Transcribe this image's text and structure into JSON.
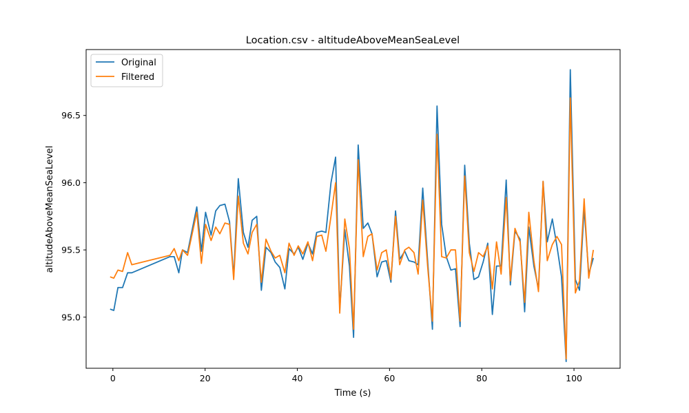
{
  "chart_data": {
    "type": "line",
    "title": "Location.csv - altitudeAboveMeanSeaLevel",
    "xlabel": "Time (s)",
    "ylabel": "altitudeAboveMeanSeaLevel",
    "xlim": [
      -5.8,
      110
    ],
    "ylim": [
      94.62,
      96.99
    ],
    "xticks": [
      0,
      20,
      40,
      60,
      80,
      100
    ],
    "yticks": [
      95.0,
      95.5,
      96.0,
      96.5
    ],
    "ytick_labels": [
      "95.0",
      "95.5",
      "96.0",
      "96.5"
    ],
    "grid": false,
    "legend_position": "upper left",
    "series": [
      {
        "name": "Original",
        "color": "#1f77b4",
        "points": [
          [
            -0.6,
            95.06
          ],
          [
            0.2,
            95.05
          ],
          [
            1.1,
            95.22
          ],
          [
            2.1,
            95.22
          ],
          [
            3.2,
            95.33
          ],
          [
            4.1,
            95.33
          ],
          [
            12.4,
            95.45
          ],
          [
            13.3,
            95.45
          ],
          [
            14.3,
            95.33
          ],
          [
            15.1,
            95.5
          ],
          [
            16.2,
            95.48
          ],
          [
            18.2,
            95.82
          ],
          [
            19.2,
            95.49
          ],
          [
            20.1,
            95.78
          ],
          [
            21.3,
            95.61
          ],
          [
            22.3,
            95.79
          ],
          [
            23.2,
            95.83
          ],
          [
            24.3,
            95.84
          ],
          [
            25.3,
            95.71
          ],
          [
            26.2,
            95.3
          ],
          [
            27.2,
            96.03
          ],
          [
            28.3,
            95.63
          ],
          [
            29.3,
            95.52
          ],
          [
            30.2,
            95.72
          ],
          [
            31.2,
            95.75
          ],
          [
            32.2,
            95.2
          ],
          [
            33.2,
            95.52
          ],
          [
            34.3,
            95.48
          ],
          [
            35.2,
            95.41
          ],
          [
            36.2,
            95.37
          ],
          [
            37.3,
            95.21
          ],
          [
            38.2,
            95.51
          ],
          [
            39.3,
            95.47
          ],
          [
            40.2,
            95.52
          ],
          [
            41.2,
            95.43
          ],
          [
            42.3,
            95.55
          ],
          [
            43.3,
            95.47
          ],
          [
            44.2,
            95.63
          ],
          [
            45.3,
            95.64
          ],
          [
            46.2,
            95.63
          ],
          [
            47.3,
            96.0
          ],
          [
            48.3,
            96.19
          ],
          [
            49.2,
            95.06
          ],
          [
            50.3,
            95.65
          ],
          [
            51.3,
            95.38
          ],
          [
            52.2,
            94.85
          ],
          [
            53.2,
            96.28
          ],
          [
            54.3,
            95.66
          ],
          [
            55.3,
            95.7
          ],
          [
            56.2,
            95.62
          ],
          [
            57.3,
            95.3
          ],
          [
            58.3,
            95.41
          ],
          [
            59.3,
            95.42
          ],
          [
            60.3,
            95.26
          ],
          [
            61.3,
            95.79
          ],
          [
            62.2,
            95.43
          ],
          [
            63.3,
            95.49
          ],
          [
            64.2,
            95.42
          ],
          [
            65.3,
            95.41
          ],
          [
            66.2,
            95.39
          ],
          [
            67.2,
            95.96
          ],
          [
            68.3,
            95.4
          ],
          [
            69.3,
            94.91
          ],
          [
            70.3,
            96.57
          ],
          [
            71.3,
            95.69
          ],
          [
            72.3,
            95.45
          ],
          [
            73.3,
            95.35
          ],
          [
            74.3,
            95.36
          ],
          [
            75.3,
            94.93
          ],
          [
            76.3,
            96.13
          ],
          [
            77.3,
            95.55
          ],
          [
            78.3,
            95.28
          ],
          [
            79.3,
            95.3
          ],
          [
            80.3,
            95.41
          ],
          [
            81.3,
            95.55
          ],
          [
            82.3,
            95.02
          ],
          [
            83.2,
            95.38
          ],
          [
            84.2,
            95.38
          ],
          [
            85.3,
            96.02
          ],
          [
            86.2,
            95.24
          ],
          [
            87.2,
            95.64
          ],
          [
            88.3,
            95.58
          ],
          [
            89.3,
            95.04
          ],
          [
            90.2,
            95.67
          ],
          [
            91.3,
            95.38
          ],
          [
            92.3,
            95.21
          ],
          [
            93.3,
            96.01
          ],
          [
            94.2,
            95.56
          ],
          [
            95.3,
            95.73
          ],
          [
            96.3,
            95.53
          ],
          [
            97.3,
            95.3
          ],
          [
            98.3,
            94.67
          ],
          [
            99.2,
            96.84
          ],
          [
            100.3,
            95.28
          ],
          [
            101.2,
            95.2
          ],
          [
            102.2,
            95.81
          ],
          [
            103.2,
            95.32
          ],
          [
            104.2,
            95.44
          ]
        ]
      },
      {
        "name": "Filtered",
        "color": "#ff7f0e",
        "points": [
          [
            -0.6,
            95.3
          ],
          [
            0.2,
            95.29
          ],
          [
            1.1,
            95.35
          ],
          [
            2.1,
            95.34
          ],
          [
            3.2,
            95.48
          ],
          [
            4.1,
            95.39
          ],
          [
            12.4,
            95.46
          ],
          [
            13.3,
            95.51
          ],
          [
            14.3,
            95.42
          ],
          [
            15.1,
            95.5
          ],
          [
            16.2,
            95.46
          ],
          [
            18.2,
            95.78
          ],
          [
            19.2,
            95.4
          ],
          [
            20.1,
            95.69
          ],
          [
            21.3,
            95.57
          ],
          [
            22.3,
            95.67
          ],
          [
            23.2,
            95.62
          ],
          [
            24.3,
            95.7
          ],
          [
            25.3,
            95.69
          ],
          [
            26.2,
            95.28
          ],
          [
            27.2,
            95.9
          ],
          [
            28.3,
            95.55
          ],
          [
            29.3,
            95.47
          ],
          [
            30.2,
            95.63
          ],
          [
            31.2,
            95.69
          ],
          [
            32.2,
            95.26
          ],
          [
            33.2,
            95.58
          ],
          [
            34.3,
            95.49
          ],
          [
            35.2,
            95.44
          ],
          [
            36.2,
            95.46
          ],
          [
            37.3,
            95.33
          ],
          [
            38.2,
            95.55
          ],
          [
            39.3,
            95.46
          ],
          [
            40.2,
            95.53
          ],
          [
            41.2,
            95.47
          ],
          [
            42.3,
            95.56
          ],
          [
            43.3,
            95.42
          ],
          [
            44.2,
            95.6
          ],
          [
            45.3,
            95.61
          ],
          [
            46.2,
            95.49
          ],
          [
            47.3,
            95.75
          ],
          [
            48.3,
            96.0
          ],
          [
            49.2,
            95.03
          ],
          [
            50.3,
            95.73
          ],
          [
            51.3,
            95.51
          ],
          [
            52.2,
            94.91
          ],
          [
            53.2,
            96.17
          ],
          [
            54.3,
            95.45
          ],
          [
            55.3,
            95.6
          ],
          [
            56.2,
            95.62
          ],
          [
            57.3,
            95.35
          ],
          [
            58.3,
            95.48
          ],
          [
            59.3,
            95.5
          ],
          [
            60.3,
            95.28
          ],
          [
            61.3,
            95.75
          ],
          [
            62.2,
            95.39
          ],
          [
            63.3,
            95.5
          ],
          [
            64.2,
            95.52
          ],
          [
            65.3,
            95.48
          ],
          [
            66.2,
            95.32
          ],
          [
            67.2,
            95.87
          ],
          [
            68.3,
            95.36
          ],
          [
            69.3,
            94.97
          ],
          [
            70.3,
            96.36
          ],
          [
            71.3,
            95.45
          ],
          [
            72.3,
            95.44
          ],
          [
            73.3,
            95.5
          ],
          [
            74.3,
            95.5
          ],
          [
            75.3,
            94.97
          ],
          [
            76.3,
            96.05
          ],
          [
            77.3,
            95.48
          ],
          [
            78.3,
            95.34
          ],
          [
            79.3,
            95.48
          ],
          [
            80.3,
            95.45
          ],
          [
            81.3,
            95.53
          ],
          [
            82.3,
            95.21
          ],
          [
            83.2,
            95.56
          ],
          [
            84.2,
            95.32
          ],
          [
            85.3,
            95.89
          ],
          [
            86.2,
            95.27
          ],
          [
            87.2,
            95.66
          ],
          [
            88.3,
            95.56
          ],
          [
            89.3,
            95.11
          ],
          [
            90.2,
            95.78
          ],
          [
            91.3,
            95.42
          ],
          [
            92.3,
            95.19
          ],
          [
            93.3,
            96.01
          ],
          [
            94.2,
            95.42
          ],
          [
            95.3,
            95.54
          ],
          [
            96.3,
            95.6
          ],
          [
            97.3,
            95.54
          ],
          [
            98.3,
            94.69
          ],
          [
            99.2,
            96.63
          ],
          [
            100.3,
            95.18
          ],
          [
            101.2,
            95.27
          ],
          [
            102.2,
            95.88
          ],
          [
            103.2,
            95.29
          ],
          [
            104.2,
            95.5
          ]
        ]
      }
    ]
  }
}
